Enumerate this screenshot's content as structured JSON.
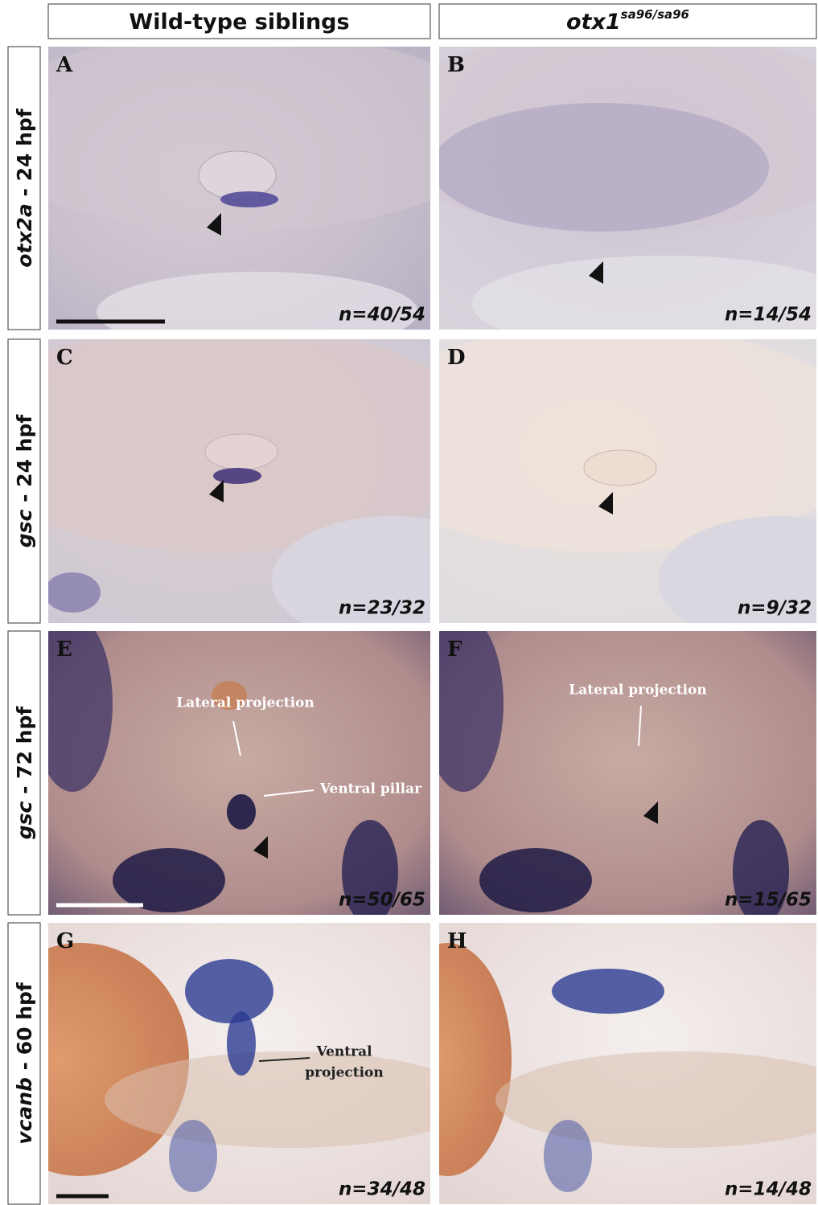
{
  "columns": [
    {
      "label": "Wild-type siblings"
    },
    {
      "label": "otx1",
      "superscript": "sa96/sa96"
    }
  ],
  "rows": [
    {
      "gene": "otx2a",
      "stage": "- 24 hpf",
      "panels": [
        {
          "letter": "A",
          "n": "n=40/54",
          "annotations": []
        },
        {
          "letter": "B",
          "n": "n=14/54",
          "annotations": []
        }
      ]
    },
    {
      "gene": "gsc",
      "stage": "- 24 hpf",
      "panels": [
        {
          "letter": "C",
          "n": "n=23/32",
          "annotations": []
        },
        {
          "letter": "D",
          "n": "n=9/32",
          "annotations": []
        }
      ]
    },
    {
      "gene": "gsc",
      "stage": "- 72 hpf",
      "panels": [
        {
          "letter": "E",
          "n": "n=50/65",
          "annotations": [
            "Lateral projection",
            "Ventral pillar"
          ]
        },
        {
          "letter": "F",
          "n": "n=15/65",
          "annotations": [
            "Lateral projection"
          ]
        }
      ]
    },
    {
      "gene": "vcanb",
      "stage": "- 60 hpf",
      "panels": [
        {
          "letter": "G",
          "n": "n=34/48",
          "annotations": [
            "Ventral",
            "projection"
          ]
        },
        {
          "letter": "H",
          "n": "n=14/48",
          "annotations": []
        }
      ]
    }
  ]
}
